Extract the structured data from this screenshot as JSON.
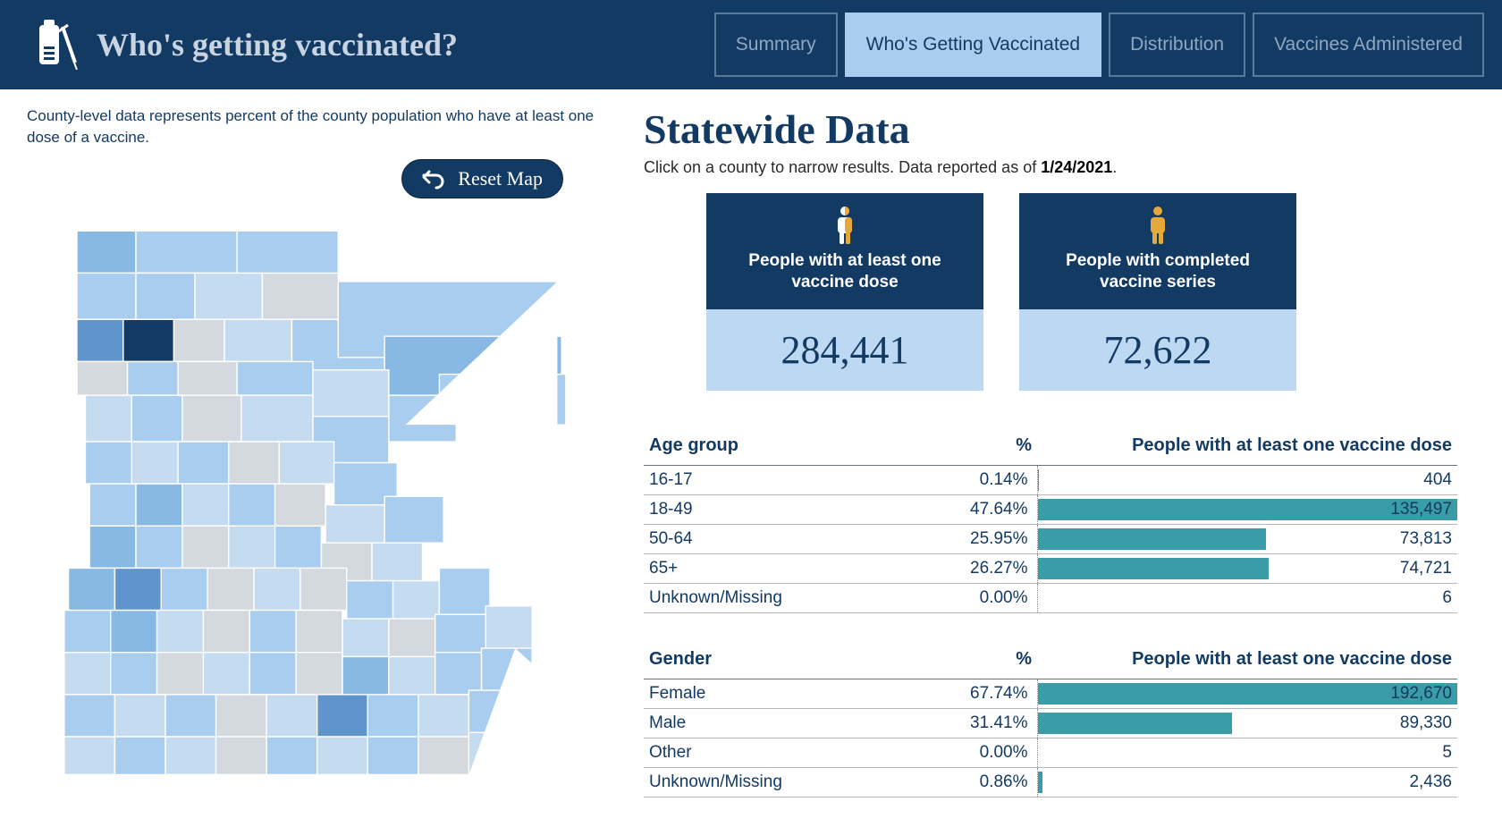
{
  "header": {
    "title": "Who's getting vaccinated?",
    "tabs": [
      {
        "label": "Summary",
        "active": false
      },
      {
        "label": "Who's Getting Vaccinated",
        "active": true
      },
      {
        "label": "Distribution",
        "active": false
      },
      {
        "label": "Vaccines Administered",
        "active": false
      }
    ]
  },
  "map": {
    "caption": "County-level data represents percent of the county population who have at least one dose of a vaccine.",
    "reset_label": "Reset Map",
    "fill_levels": [
      "#d3d9de",
      "#c5dbf0",
      "#a9cdee",
      "#88b8e4",
      "#5f94cd",
      "#133a63"
    ],
    "stroke": "#ffffff"
  },
  "statewide": {
    "title": "Statewide Data",
    "subtitle_pre": "Click on a county to narrow results. Data reported as of ",
    "subtitle_date": "1/24/2021",
    "subtitle_post": ".",
    "cards": [
      {
        "caption": "People with at least one vaccine dose",
        "value": "284,441",
        "icon_fill": "#fff",
        "icon_accent": "#e5a83a"
      },
      {
        "caption": "People with completed vaccine series",
        "value": "72,622",
        "icon_fill": "#e5a83a",
        "icon_accent": "#e5a83a"
      }
    ]
  },
  "tables": {
    "bar_color": "#3a9ca6",
    "age": {
      "heading": "Age group",
      "pct_heading": "%",
      "bar_heading": "People with at least one vaccine dose",
      "max": 135497,
      "rows": [
        {
          "cat": "16-17",
          "pct": "0.14%",
          "val": 404,
          "disp": "404"
        },
        {
          "cat": "18-49",
          "pct": "47.64%",
          "val": 135497,
          "disp": "135,497"
        },
        {
          "cat": "50-64",
          "pct": "25.95%",
          "val": 73813,
          "disp": "73,813"
        },
        {
          "cat": "65+",
          "pct": "26.27%",
          "val": 74721,
          "disp": "74,721"
        },
        {
          "cat": "Unknown/Missing",
          "pct": "0.00%",
          "val": 6,
          "disp": "6"
        }
      ]
    },
    "gender": {
      "heading": "Gender",
      "pct_heading": "%",
      "bar_heading": "People with at least one vaccine dose",
      "max": 192670,
      "rows": [
        {
          "cat": "Female",
          "pct": "67.74%",
          "val": 192670,
          "disp": "192,670"
        },
        {
          "cat": "Male",
          "pct": "31.41%",
          "val": 89330,
          "disp": "89,330"
        },
        {
          "cat": "Other",
          "pct": "0.00%",
          "val": 5,
          "disp": "5"
        },
        {
          "cat": "Unknown/Missing",
          "pct": "0.86%",
          "val": 2436,
          "disp": "2,436"
        }
      ]
    }
  }
}
